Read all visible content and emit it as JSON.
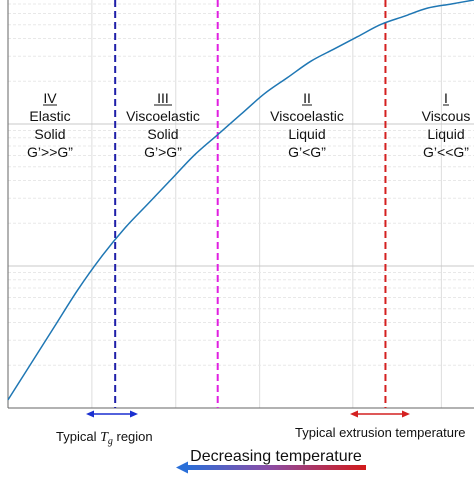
{
  "chart_data": {
    "type": "line",
    "title": "",
    "xlabel": "",
    "ylabel": "",
    "y_scale": "log",
    "grid": true,
    "series": [
      {
        "x": [
          0,
          0.05,
          0.1,
          0.15,
          0.2,
          0.25,
          0.3,
          0.35,
          0.4,
          0.45,
          0.5,
          0.55,
          0.6,
          0.65,
          0.7,
          0.75,
          0.8,
          0.85,
          0.9,
          0.95,
          1.0
        ],
        "y": [
          0.02,
          0.11,
          0.2,
          0.29,
          0.37,
          0.44,
          0.5,
          0.56,
          0.62,
          0.67,
          0.72,
          0.77,
          0.81,
          0.85,
          0.88,
          0.91,
          0.94,
          0.96,
          0.98,
          0.99,
          1.0
        ],
        "color": "#1f77b4"
      }
    ],
    "vlines": [
      {
        "x": 0.23,
        "color": "#1f1fa8",
        "style": "dashed"
      },
      {
        "x": 0.45,
        "color": "#e020e0",
        "style": "dashed"
      },
      {
        "x": 0.81,
        "color": "#d42020",
        "style": "dashed"
      }
    ],
    "regions": [
      {
        "numeral": "IV",
        "lines": [
          "Elastic",
          "Solid",
          "G’>>G”"
        ]
      },
      {
        "numeral": "III",
        "lines": [
          "Viscoelastic",
          "Solid",
          "G’>G”"
        ]
      },
      {
        "numeral": "II",
        "lines": [
          "Viscoelastic",
          "Liquid",
          "G’<G”"
        ]
      },
      {
        "numeral": "I",
        "lines": [
          "Viscous",
          "Liquid",
          "G’<<G”"
        ]
      }
    ],
    "annotations": {
      "tg_prefix": "Typical ",
      "tg_symbol": "T",
      "tg_sub": "g",
      "tg_suffix": " region",
      "extrusion": "Typical extrusion temperature",
      "direction": "Decreasing temperature"
    },
    "colors": {
      "curve": "#1f77b4",
      "tg_arrow": "#1a2fd0",
      "extrusion_arrow": "#d42020"
    }
  }
}
